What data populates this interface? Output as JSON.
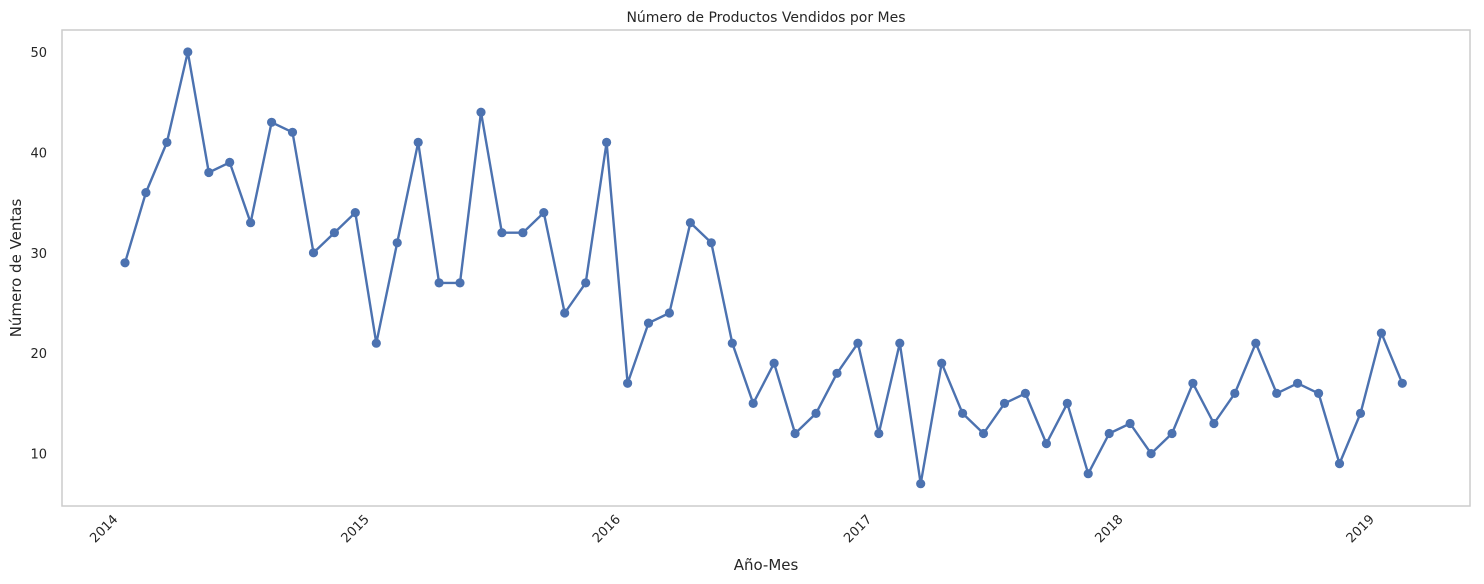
{
  "chart_data": {
    "type": "line",
    "title": "Número de Productos Vendidos por Mes",
    "xlabel": "Año-Mes",
    "ylabel": "Número de Ventas",
    "x_ticks": [
      "2014",
      "2015",
      "2016",
      "2017",
      "2018",
      "2019"
    ],
    "y_ticks": [
      "10",
      "20",
      "30",
      "40",
      "50"
    ],
    "ylim": [
      5,
      52
    ],
    "grid": false,
    "line_color": "#4c72b0",
    "x": [
      "2014-01",
      "2014-02",
      "2014-03",
      "2014-04",
      "2014-05",
      "2014-06",
      "2014-07",
      "2014-08",
      "2014-09",
      "2014-10",
      "2014-11",
      "2014-12",
      "2015-01",
      "2015-02",
      "2015-03",
      "2015-04",
      "2015-05",
      "2015-06",
      "2015-07",
      "2015-08",
      "2015-09",
      "2015-10",
      "2015-11",
      "2015-12",
      "2016-01",
      "2016-02",
      "2016-03",
      "2016-04",
      "2016-05",
      "2016-06",
      "2016-07",
      "2016-08",
      "2016-09",
      "2016-10",
      "2016-11",
      "2016-12",
      "2017-01",
      "2017-02",
      "2017-03",
      "2017-04",
      "2017-05",
      "2017-06",
      "2017-07",
      "2017-08",
      "2017-09",
      "2017-10",
      "2017-11",
      "2017-12",
      "2018-01",
      "2018-02",
      "2018-03",
      "2018-04",
      "2018-05",
      "2018-06",
      "2018-07",
      "2018-08",
      "2018-09",
      "2018-10",
      "2018-11",
      "2018-12",
      "2019-01",
      "2019-02"
    ],
    "values": [
      29,
      36,
      41,
      50,
      38,
      39,
      33,
      43,
      42,
      30,
      32,
      34,
      21,
      31,
      41,
      27,
      27,
      44,
      32,
      32,
      34,
      24,
      27,
      41,
      17,
      23,
      24,
      33,
      31,
      21,
      15,
      19,
      12,
      14,
      18,
      21,
      12,
      21,
      7,
      19,
      14,
      12,
      15,
      16,
      11,
      15,
      8,
      12,
      13,
      10,
      12,
      17,
      13,
      16,
      21,
      16,
      17,
      16,
      9,
      14,
      22,
      17
    ]
  }
}
